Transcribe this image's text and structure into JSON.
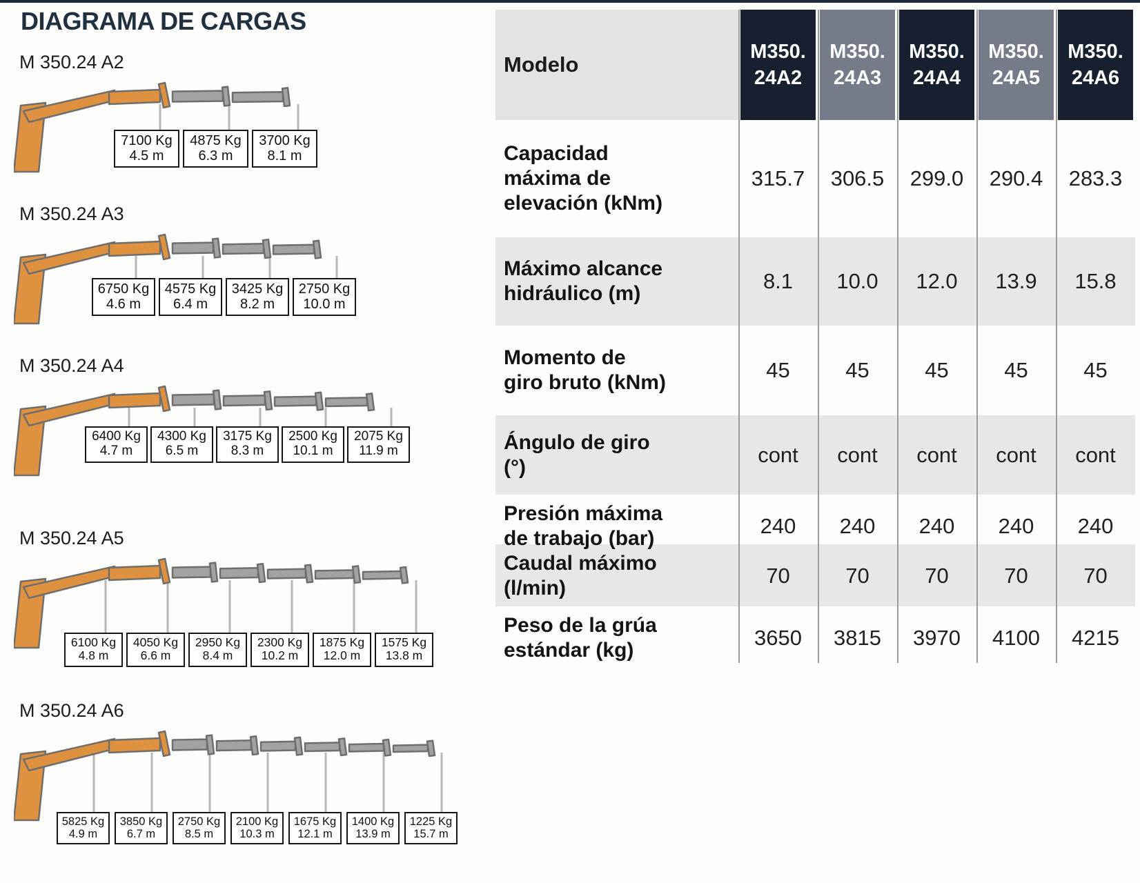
{
  "page": {
    "title": "DIAGRAMA DE CARGAS"
  },
  "colors": {
    "accent_navy": "#16202F",
    "accent_slate": "#767B8A",
    "crane_orange": "#E0913F",
    "crane_gray": "#A2A3A1",
    "stripe_gray": "#E7E7E5",
    "header_label_bg": "#E3E3E1",
    "grid_line": "#9B9B9A",
    "top_border": "#1C2A3A"
  },
  "cranes": [
    {
      "model": "M 350.24 A2",
      "labels": [
        {
          "kg": "7100 Kg",
          "m": "4.5 m"
        },
        {
          "kg": "4875 Kg",
          "m": "6.3 m"
        },
        {
          "kg": "3700 Kg",
          "m": "8.1 m"
        }
      ]
    },
    {
      "model": "M 350.24 A3",
      "labels": [
        {
          "kg": "6750 Kg",
          "m": "4.6 m"
        },
        {
          "kg": "4575 Kg",
          "m": "6.4 m"
        },
        {
          "kg": "3425 Kg",
          "m": "8.2 m"
        },
        {
          "kg": "2750 Kg",
          "m": "10.0 m"
        }
      ]
    },
    {
      "model": "M 350.24 A4",
      "labels": [
        {
          "kg": "6400 Kg",
          "m": "4.7 m"
        },
        {
          "kg": "4300 Kg",
          "m": "6.5 m"
        },
        {
          "kg": "3175 Kg",
          "m": "8.3 m"
        },
        {
          "kg": "2500 Kg",
          "m": "10.1 m"
        },
        {
          "kg": "2075 Kg",
          "m": "11.9 m"
        }
      ]
    },
    {
      "model": "M 350.24 A5",
      "labels": [
        {
          "kg": "6100 Kg",
          "m": "4.8 m"
        },
        {
          "kg": "4050 Kg",
          "m": "6.6 m"
        },
        {
          "kg": "2950 Kg",
          "m": "8.4 m"
        },
        {
          "kg": "2300 Kg",
          "m": "10.2 m"
        },
        {
          "kg": "1875 Kg",
          "m": "12.0 m"
        },
        {
          "kg": "1575 Kg",
          "m": "13.8 m"
        }
      ]
    },
    {
      "model": "M 350.24 A6",
      "labels": [
        {
          "kg": "5825 Kg",
          "m": "4.9 m"
        },
        {
          "kg": "3850 Kg",
          "m": "6.7 m"
        },
        {
          "kg": "2750 Kg",
          "m": "8.5 m"
        },
        {
          "kg": "2100 Kg",
          "m": "10.3 m"
        },
        {
          "kg": "1675 Kg",
          "m": "12.1 m"
        },
        {
          "kg": "1400 Kg",
          "m": "13.9 m"
        },
        {
          "kg": "1225 Kg",
          "m": "15.7 m"
        }
      ]
    }
  ],
  "table": {
    "header_label": "Modelo",
    "models": [
      {
        "line1": "M350.",
        "line2": "24A2"
      },
      {
        "line1": "M350.",
        "line2": "24A3"
      },
      {
        "line1": "M350.",
        "line2": "24A4"
      },
      {
        "line1": "M350.",
        "line2": "24A5"
      },
      {
        "line1": "M350.",
        "line2": "24A6"
      }
    ],
    "rows": [
      {
        "label": "Capacidad máxima de elevación (kNm)",
        "values": [
          "315.7",
          "306.5",
          "299.0",
          "290.4",
          "283.3"
        ]
      },
      {
        "label": "Máximo alcance hidráulico (m)",
        "values": [
          "8.1",
          "10.0",
          "12.0",
          "13.9",
          "15.8"
        ]
      },
      {
        "label": "Momento de giro bruto (kNm)",
        "values": [
          "45",
          "45",
          "45",
          "45",
          "45"
        ]
      },
      {
        "label": "Ángulo de giro (°)",
        "values": [
          "cont",
          "cont",
          "cont",
          "cont",
          "cont"
        ]
      },
      {
        "label": "Presión máxima de trabajo (bar)",
        "values": [
          "240",
          "240",
          "240",
          "240",
          "240"
        ]
      },
      {
        "label": "Caudal máximo (l/min)",
        "values": [
          "70",
          "70",
          "70",
          "70",
          "70"
        ]
      },
      {
        "label": "Peso de la grúa estándar (kg)",
        "values": [
          "3650",
          "3815",
          "3970",
          "4100",
          "4215"
        ]
      }
    ]
  }
}
